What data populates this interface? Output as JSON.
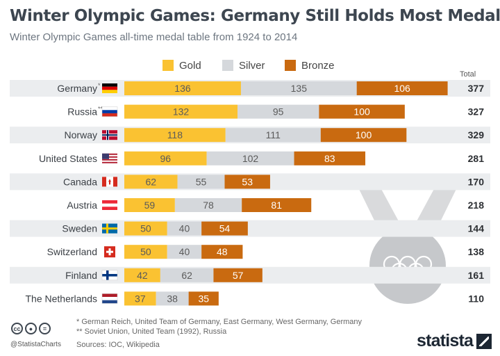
{
  "title": "Winter Olympic Games: Germany Still Holds Most Medals",
  "subtitle": "Winter Olympic Games all-time medal table from 1924 to 2014",
  "total_header": "Total",
  "colors": {
    "gold": "#fac232",
    "silver": "#d5d8dc",
    "bronze": "#c96a10",
    "row_shade": "#ebedef"
  },
  "footnotes": [
    "*   German Reich, United Team of Germany, East Germany, West Germany, Germany",
    "** Soviet Union, United Team (1992), Russia"
  ],
  "sources": "Sources: IOC, Wikipedia",
  "handle": "@StatistaCharts",
  "brand": "statista",
  "license_icons": [
    "cc-icon",
    "attribution-icon",
    "equal-icon"
  ],
  "chart_data": {
    "type": "bar",
    "stacked": true,
    "orientation": "horizontal",
    "categories": [
      "Germany",
      "Russia",
      "Norway",
      "United States",
      "Canada",
      "Austria",
      "Sweden",
      "Switzerland",
      "Finland",
      "The Netherlands"
    ],
    "category_marks": [
      "*",
      "**",
      "",
      "",
      "",
      "",
      "",
      "",
      "",
      ""
    ],
    "flag_icons": [
      "germany-flag-icon",
      "russia-flag-icon",
      "norway-flag-icon",
      "usa-flag-icon",
      "canada-flag-icon",
      "austria-flag-icon",
      "sweden-flag-icon",
      "switzerland-flag-icon",
      "finland-flag-icon",
      "netherlands-flag-icon"
    ],
    "series": [
      {
        "name": "Gold",
        "values": [
          136,
          132,
          118,
          96,
          62,
          59,
          50,
          50,
          42,
          37
        ]
      },
      {
        "name": "Silver",
        "values": [
          135,
          95,
          111,
          102,
          55,
          78,
          40,
          40,
          62,
          38
        ]
      },
      {
        "name": "Bronze",
        "values": [
          106,
          100,
          100,
          83,
          53,
          81,
          54,
          48,
          57,
          35
        ]
      }
    ],
    "totals": [
      377,
      327,
      329,
      281,
      170,
      218,
      144,
      138,
      161,
      110
    ],
    "legend": "top",
    "grid": false
  }
}
